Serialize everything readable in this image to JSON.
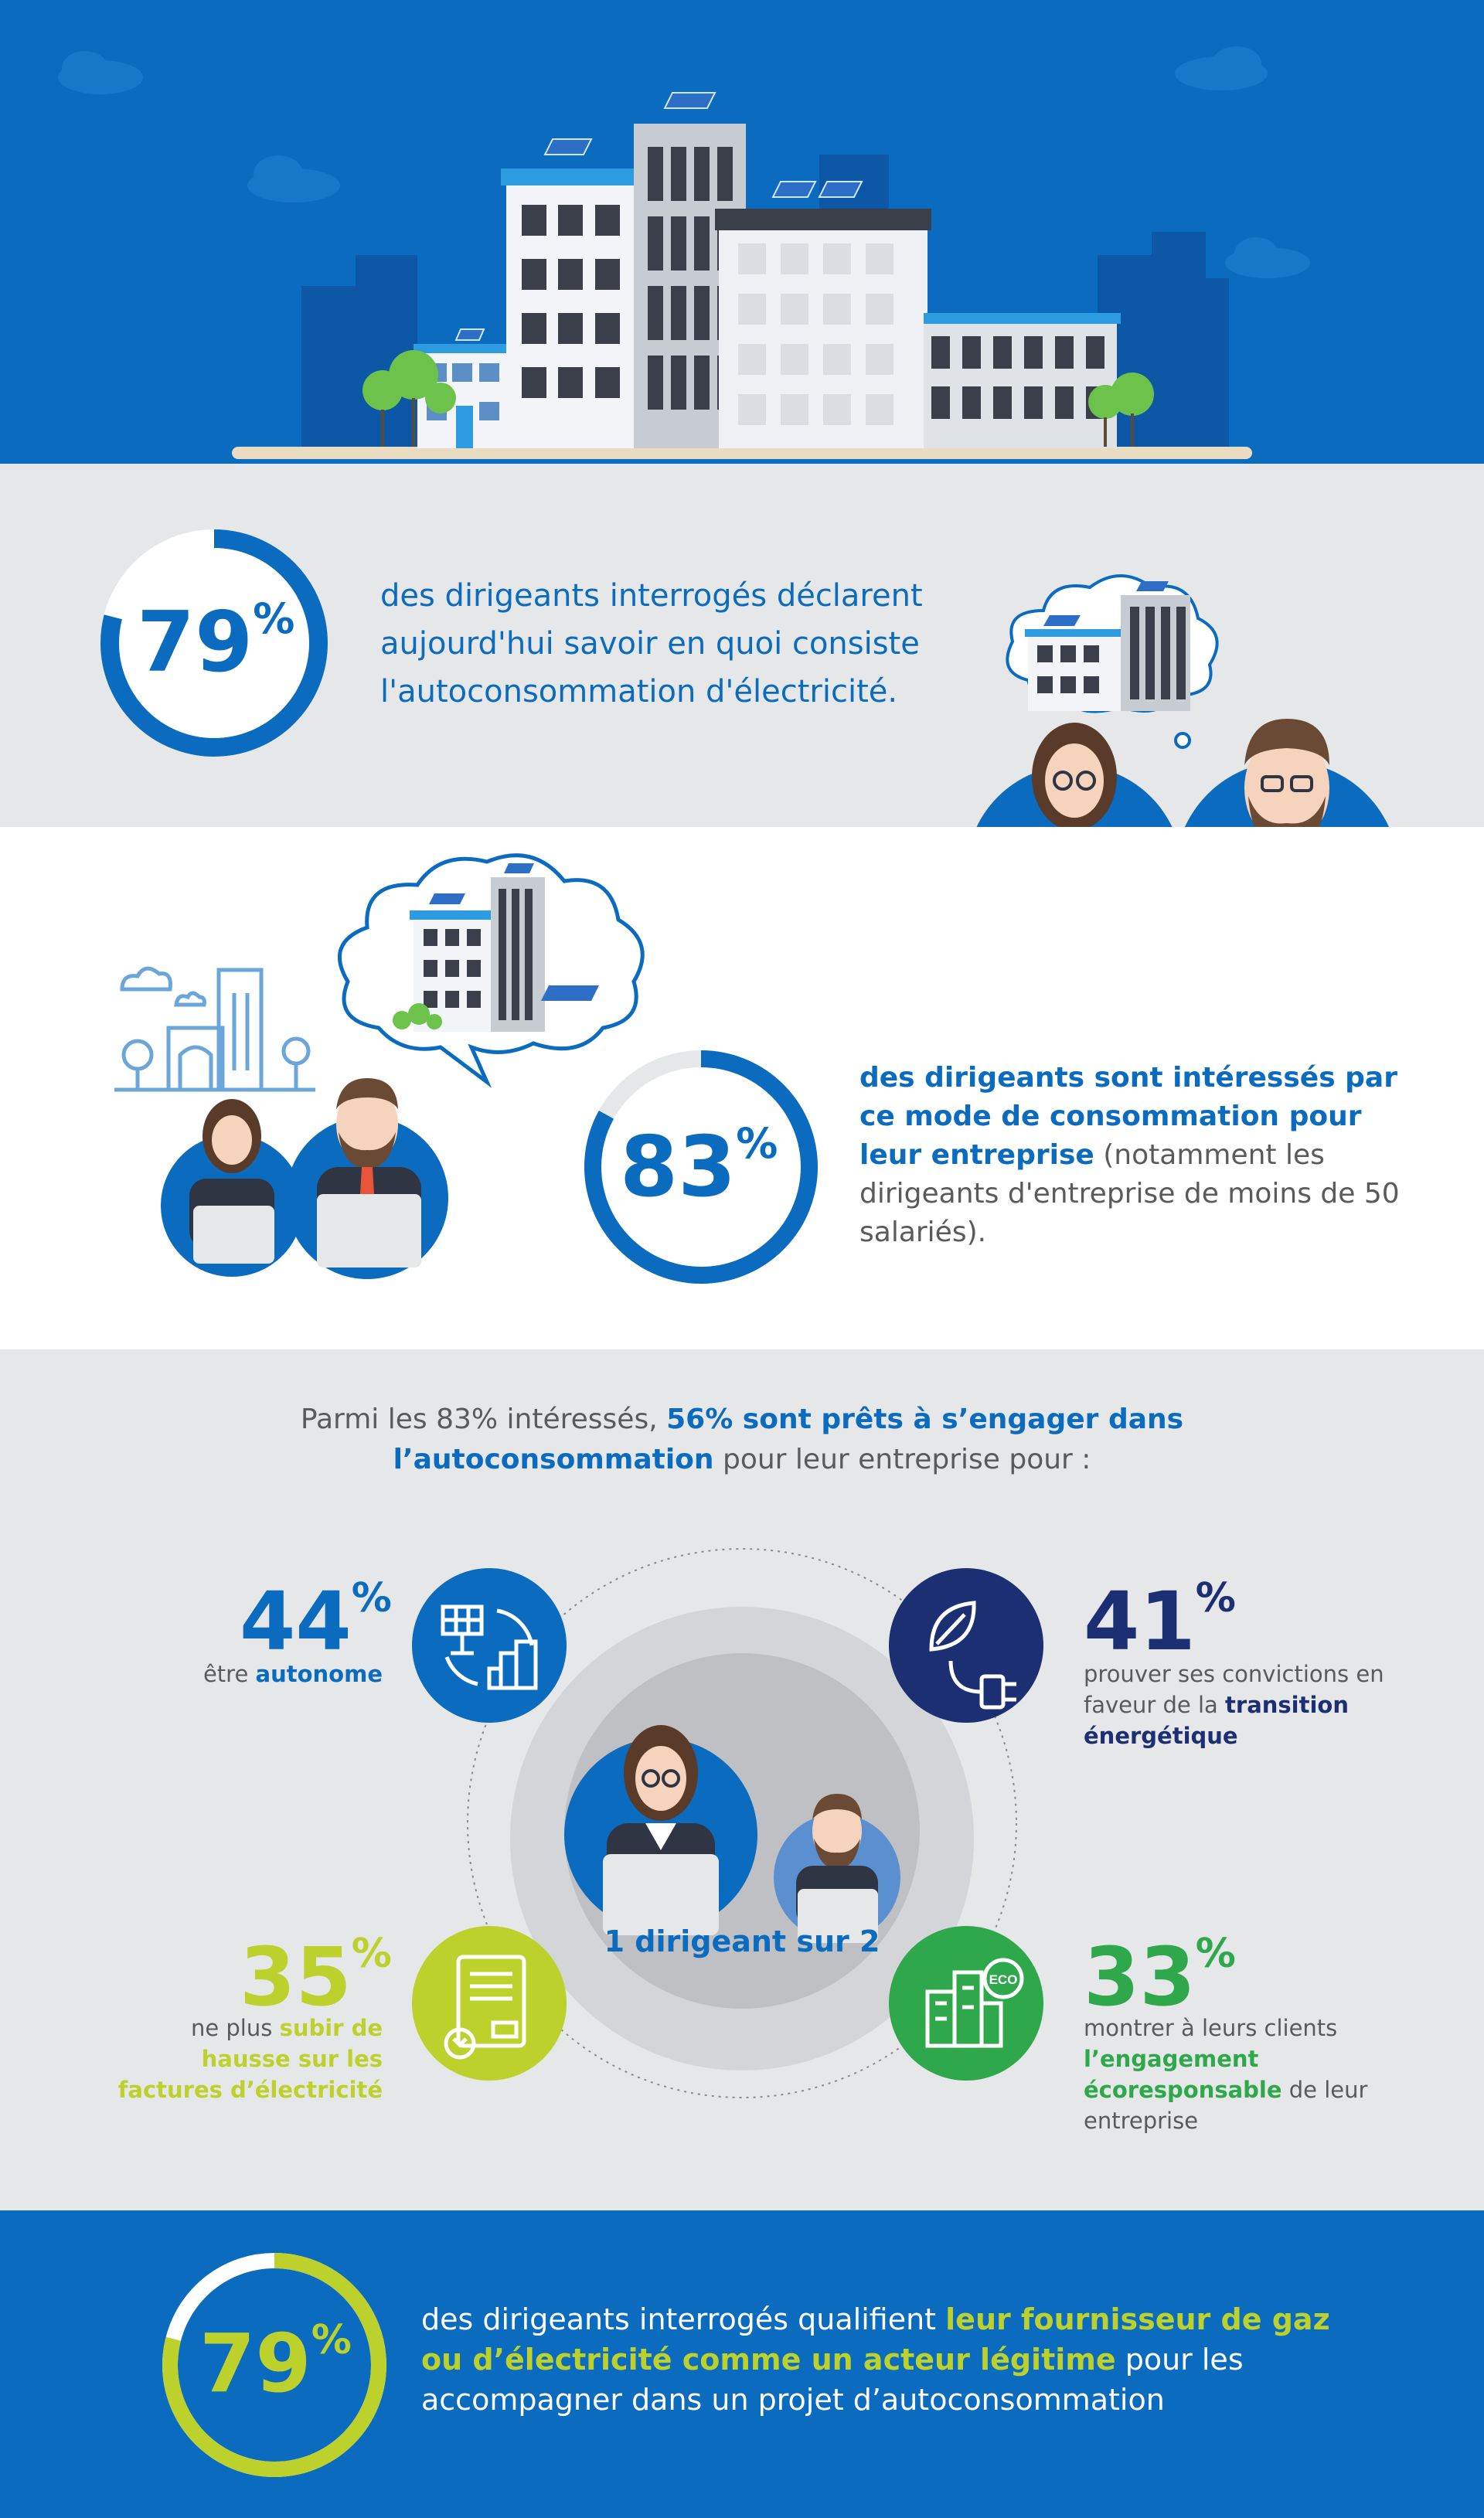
{
  "stat1": {
    "value": "79",
    "unit": "%",
    "text": "des dirigeants interrogés déclarent aujourd'hui savoir en quoi consiste l'autoconsommation d'électricité.",
    "fraction": 0.79
  },
  "stat2": {
    "value": "83",
    "unit": "%",
    "text_bold": "des dirigeants sont intéressés par ce mode de consommation pour leur entreprise",
    "text_normal": " (notamment les dirigeants d'entreprise de moins de 50 salariés).",
    "fraction": 0.83
  },
  "intro": {
    "part1": "Parmi les 83% intéressés, ",
    "part2_bold": "56% sont prêts à s’engager dans l’autoconsommation",
    "part3": " pour leur entreprise pour :"
  },
  "center_label": "1 dirigeant sur 2",
  "reasons": {
    "r44": {
      "value": "44",
      "unit": "%",
      "text1": "être ",
      "text2_bold": "autonome"
    },
    "r41": {
      "value": "41",
      "unit": "%",
      "text1": "prouver ses convictions en faveur de la ",
      "text2_bold": "transition énergétique"
    },
    "r35": {
      "value": "35",
      "unit": "%",
      "text1": "ne plus ",
      "text2_bold": "subir de hausse sur les factures d’électricité"
    },
    "r33": {
      "value": "33",
      "unit": "%",
      "text1": "montrer à leurs clients ",
      "text2_bold": "l’engagement écoresponsable",
      "text3": " de leur entreprise",
      "eco_label": "ECO"
    }
  },
  "stat3": {
    "value": "79",
    "unit": "%",
    "text1": "des dirigeants interrogés qualifient ",
    "text2_bold": "leur fournisseur de gaz ou d’électricité comme un acteur légitime",
    "text3": " pour les accompagner dans un projet d’autoconsommation",
    "fraction": 0.79
  },
  "colors": {
    "blue": "#0a6bbf",
    "navy": "#1c2f73",
    "lime": "#bcd12b",
    "green": "#2ea84a",
    "light_gray": "#e6e7e9"
  }
}
